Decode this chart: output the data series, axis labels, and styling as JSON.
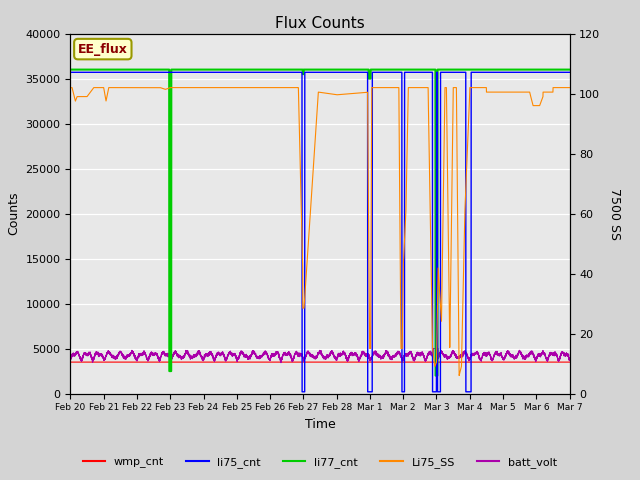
{
  "title": "Flux Counts",
  "xlabel": "Time",
  "ylabel_left": "Counts",
  "ylabel_right": "7500 SS",
  "annotation_text": "EE_flux",
  "ylim_left": [
    0,
    40000
  ],
  "ylim_right": [
    0,
    120
  ],
  "fig_facecolor": "#d4d4d4",
  "plot_facecolor": "#e8e8e8",
  "legend_entries": [
    "wmp_cnt",
    "li75_cnt",
    "li77_cnt",
    "Li75_SS",
    "batt_volt"
  ],
  "legend_colors": [
    "#ff0000",
    "#0000ff",
    "#00cc00",
    "#ff8800",
    "#aa00aa"
  ],
  "x_tick_labels": [
    "Feb 20",
    "Feb 21",
    "Feb 22",
    "Feb 23",
    "Feb 24",
    "Feb 25",
    "Feb 26",
    "Feb 27",
    "Feb 28",
    "Mar 1",
    "Mar 2",
    "Mar 3",
    "Mar 4",
    "Mar 5",
    "Mar 6",
    "Mar 7"
  ],
  "right_yticks": [
    0,
    20,
    40,
    60,
    80,
    100,
    120
  ],
  "left_yticks": [
    0,
    5000,
    10000,
    15000,
    20000,
    25000,
    30000,
    35000,
    40000
  ]
}
